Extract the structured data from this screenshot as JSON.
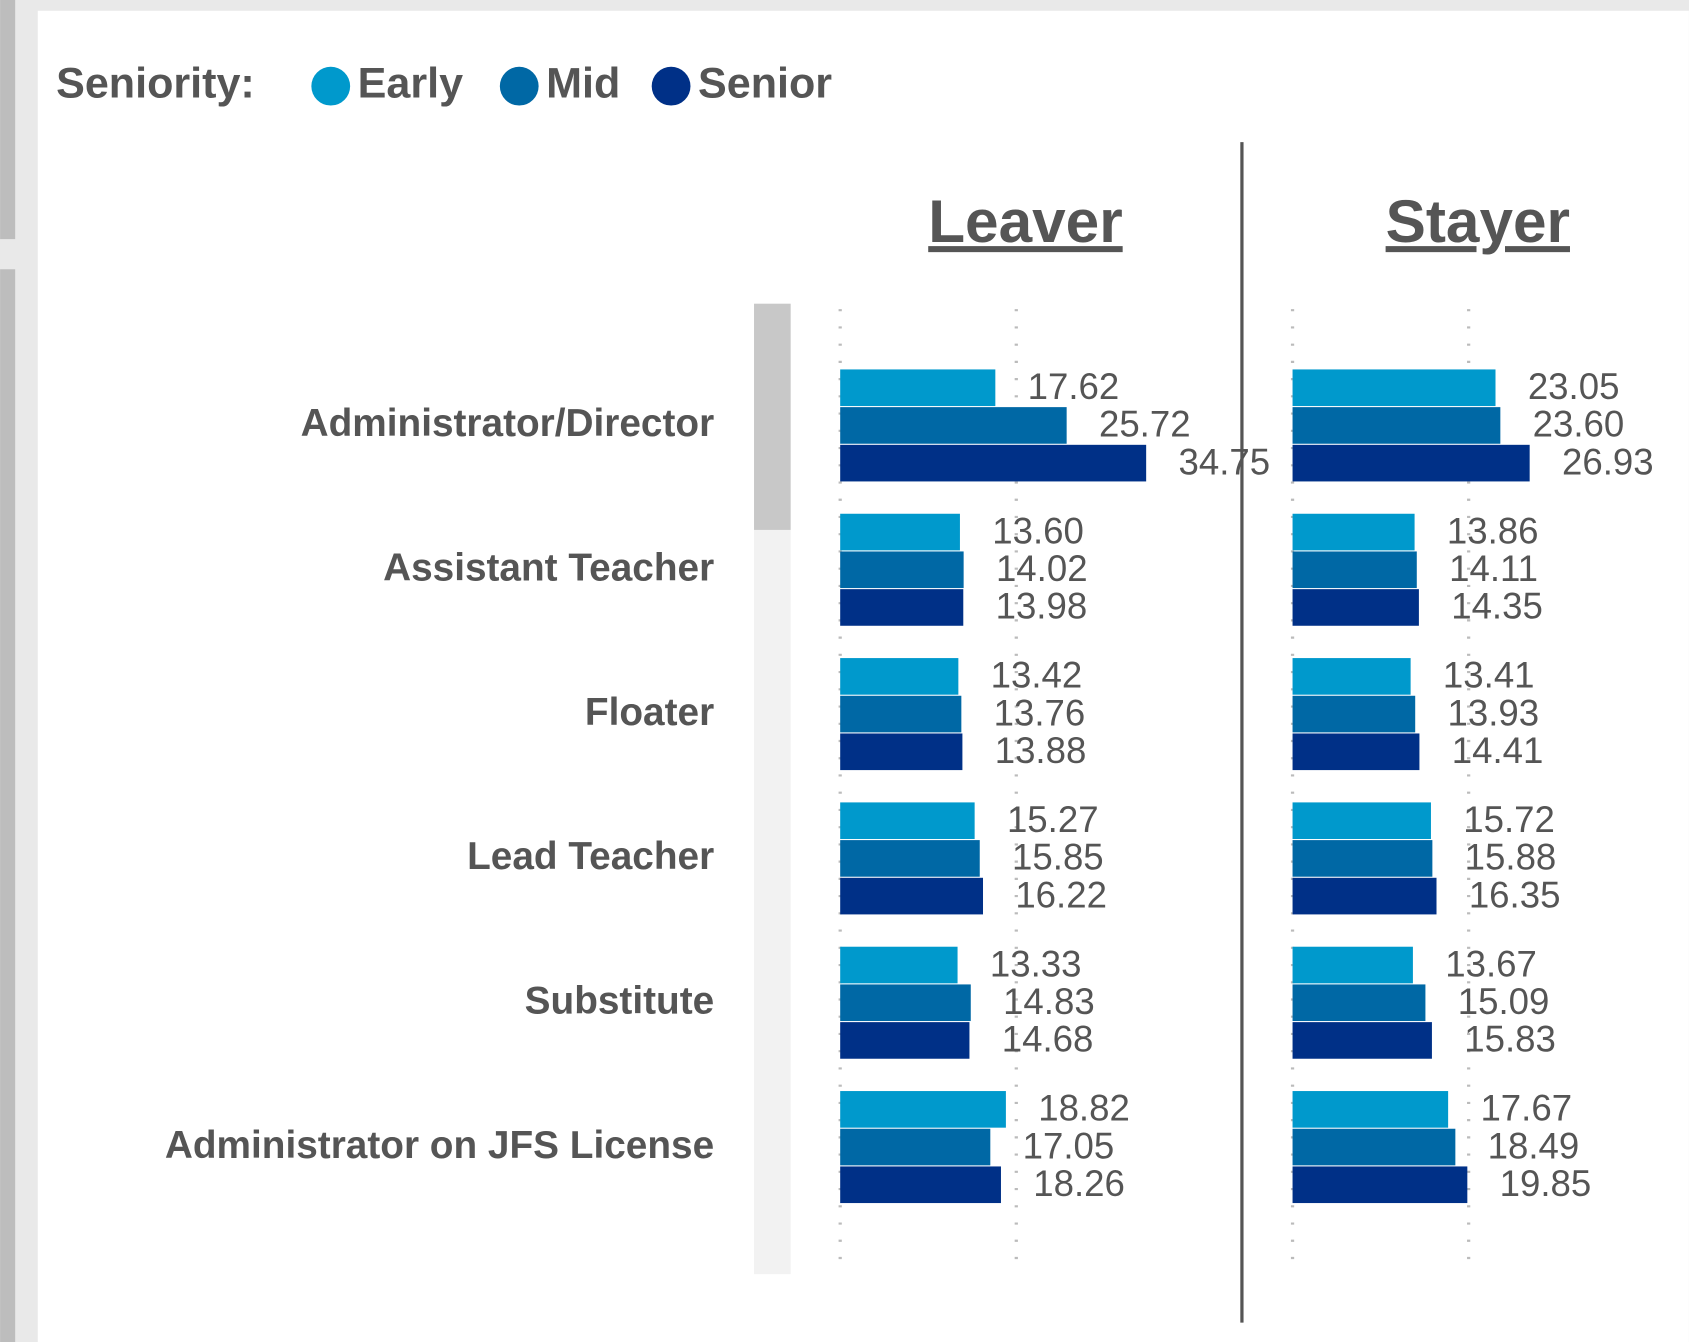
{
  "chart_data": {
    "type": "bar",
    "legend_title": "Seniority:",
    "categories": [
      "Administrator/Director",
      "Assistant Teacher",
      "Floater",
      "Lead Teacher",
      "Substitute",
      "Administrator on JFS License"
    ],
    "series": [
      {
        "name": "Early",
        "color": "#0099cc"
      },
      {
        "name": "Mid",
        "color": "#0068a5"
      },
      {
        "name": "Senior",
        "color": "#003087"
      }
    ],
    "xlim": [
      0,
      40
    ],
    "xticks": [
      0,
      20
    ],
    "grid": true,
    "panels": [
      {
        "title": "Leaver",
        "values": [
          [
            17.62,
            13.6,
            13.42,
            15.27,
            13.33,
            18.82
          ],
          [
            25.72,
            14.02,
            13.76,
            15.85,
            14.83,
            17.05
          ],
          [
            34.75,
            13.98,
            13.88,
            16.22,
            14.68,
            18.26
          ]
        ],
        "value_labels": [
          [
            "17.62",
            "13.60",
            "13.42",
            "15.27",
            "13.33",
            "18.82"
          ],
          [
            "25.72",
            "14.02",
            "13.76",
            "15.85",
            "14.83",
            "17.05"
          ],
          [
            "34.75",
            "13.98",
            "13.88",
            "16.22",
            "14.68",
            "18.26"
          ]
        ]
      },
      {
        "title": "Stayer",
        "values": [
          [
            23.05,
            13.86,
            13.41,
            15.72,
            13.67,
            17.67
          ],
          [
            23.6,
            14.11,
            13.93,
            15.88,
            15.09,
            18.49
          ],
          [
            26.93,
            14.35,
            14.41,
            16.35,
            15.83,
            19.85
          ]
        ],
        "value_labels": [
          [
            "23.05",
            "13.86",
            "13.41",
            "15.72",
            "13.67",
            "17.67"
          ],
          [
            "23.60",
            "14.11",
            "13.93",
            "15.88",
            "15.09",
            "18.49"
          ],
          [
            "26.93",
            "14.35",
            "14.41",
            "16.35",
            "15.83",
            "19.85"
          ]
        ]
      }
    ]
  }
}
